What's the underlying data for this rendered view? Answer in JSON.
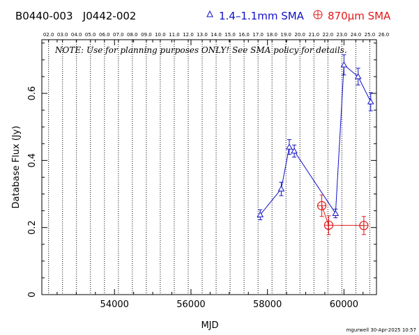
{
  "header": {
    "source_names": "B0440-003   J0442-002",
    "legend_blue": "1.4–1.1mm SMA",
    "legend_red_prefix": "870",
    "legend_red_mu": "µ",
    "legend_red_suffix": "m SMA"
  },
  "note": "NOTE: Use for planning purposes ONLY!  See SMA policy for details.",
  "footer": "mgurwell 30-Apr-2025 10:57",
  "colors": {
    "blue": "#1010c8",
    "red": "#e01818",
    "axis": "#000000"
  },
  "chart_data": {
    "type": "scatter",
    "xlabel": "MJD",
    "ylabel": "Database Flux (Jy)",
    "xlim": [
      52100,
      60850
    ],
    "ylim": [
      0,
      0.76
    ],
    "x_ticks": [
      54000,
      56000,
      58000,
      60000
    ],
    "x_tick_labels": [
      "54000",
      "56000",
      "58000",
      "60000"
    ],
    "y_ticks": [
      0,
      0.2,
      0.4,
      0.6
    ],
    "y_tick_labels": [
      "0",
      "0.2",
      "0.4",
      "0.6"
    ],
    "top_axis_labels": [
      "02.0",
      "03.0",
      "04.0",
      "05.0",
      "06.0",
      "07.0",
      "08.0",
      "09.0",
      "10.0",
      "11.0",
      "12.0",
      "13.0",
      "14.0",
      "15.0",
      "16.0",
      "17.0",
      "18.0",
      "19.0",
      "20.0",
      "21.0",
      "22.0",
      "23.0",
      "24.0",
      "25.0",
      "26.0"
    ],
    "top_axis_mjd": [
      52276,
      52641,
      53006,
      53371,
      53737,
      54102,
      54467,
      54832,
      55197,
      55563,
      55928,
      56293,
      56658,
      57023,
      57388,
      57754,
      58119,
      58484,
      58849,
      59215,
      59580,
      59945,
      60310,
      60676,
      61041
    ],
    "year_lines_mjd": [
      52276,
      52641,
      53006,
      53371,
      53737,
      54102,
      54467,
      54832,
      55197,
      55563,
      55928,
      56293,
      56658,
      57023,
      57388,
      57754,
      58119,
      58484,
      58849,
      59215,
      59580,
      59945,
      60310,
      60676
    ],
    "series": [
      {
        "name": "1.4–1.1mm SMA",
        "color": "#1010c8",
        "marker": "triangle",
        "x": [
          57810,
          58360,
          58570,
          58700,
          59780,
          60000,
          60370,
          60700
        ],
        "y": [
          0.238,
          0.315,
          0.44,
          0.428,
          0.242,
          0.685,
          0.65,
          0.575
        ],
        "err": [
          0.015,
          0.02,
          0.022,
          0.018,
          0.013,
          0.03,
          0.025,
          0.027
        ]
      },
      {
        "name": "870µm SMA",
        "color": "#e01818",
        "marker": "circle-plus",
        "x": [
          59420,
          59600,
          60520
        ],
        "y": [
          0.265,
          0.207,
          0.206
        ],
        "err": [
          0.032,
          0.028,
          0.027
        ]
      }
    ]
  }
}
